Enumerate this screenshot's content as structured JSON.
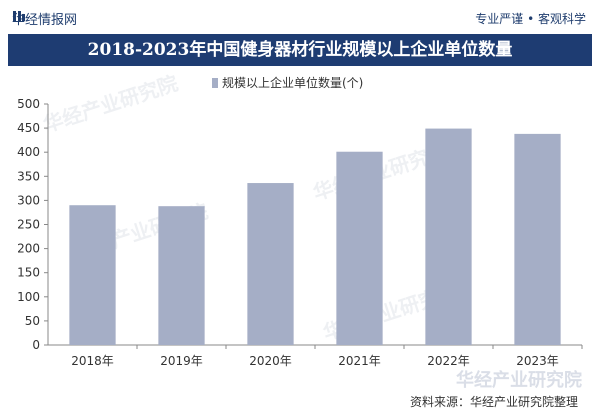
{
  "header": {
    "brand": "华经情报网",
    "tagline": "专业严谨 • 客观科学",
    "title": "2018-2023年中国健身器材行业规模以上企业单位数量"
  },
  "colors": {
    "bar": "#a5aec6",
    "title_band": "#1e3c72",
    "axis": "#888888"
  },
  "chart_data": {
    "type": "bar",
    "title": "2018-2023年中国健身器材行业规模以上企业单位数量",
    "categories": [
      "2018年",
      "2019年",
      "2020年",
      "2021年",
      "2022年",
      "2023年"
    ],
    "series": [
      {
        "name": "规模以上企业单位数量(个)",
        "values": [
          290,
          288,
          336,
          401,
          449,
          438
        ]
      }
    ],
    "ylim": [
      0,
      500
    ],
    "yticks": [
      0,
      50,
      100,
      150,
      200,
      250,
      300,
      350,
      400,
      450,
      500
    ],
    "xlabel": "",
    "ylabel": "",
    "grid": false,
    "legend": "top-center"
  },
  "footer": {
    "source": "资料来源：华经产业研究院整理",
    "watermark_corner": "华经产业研究院"
  },
  "watermarks": [
    "华经产业研究院",
    "华经产业研究院",
    "华经产业研究院",
    "华经产业研究院"
  ]
}
